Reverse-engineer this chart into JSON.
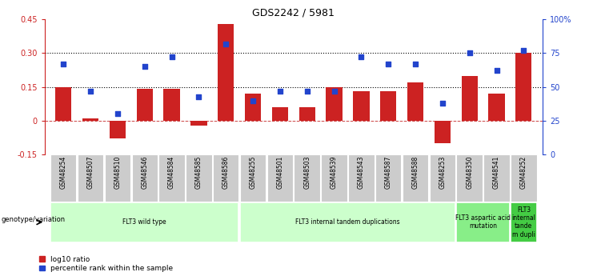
{
  "title": "GDS2242 / 5981",
  "samples": [
    "GSM48254",
    "GSM48507",
    "GSM48510",
    "GSM48546",
    "GSM48584",
    "GSM48585",
    "GSM48586",
    "GSM48255",
    "GSM48501",
    "GSM48503",
    "GSM48539",
    "GSM48543",
    "GSM48587",
    "GSM48588",
    "GSM48253",
    "GSM48350",
    "GSM48541",
    "GSM48252"
  ],
  "log10_ratio": [
    0.15,
    0.01,
    -0.08,
    0.14,
    0.14,
    -0.02,
    0.43,
    0.12,
    0.06,
    0.06,
    0.15,
    0.13,
    0.13,
    0.17,
    -0.1,
    0.2,
    0.12,
    0.3
  ],
  "percentile_rank": [
    67,
    47,
    30,
    65,
    72,
    43,
    82,
    40,
    47,
    47,
    47,
    72,
    67,
    67,
    38,
    75,
    62,
    77
  ],
  "groups": [
    {
      "label": "FLT3 wild type",
      "start": 0,
      "end": 7,
      "color": "#ccffcc"
    },
    {
      "label": "FLT3 internal tandem duplications",
      "start": 7,
      "end": 15,
      "color": "#ccffcc"
    },
    {
      "label": "FLT3 aspartic acid\nmutation",
      "start": 15,
      "end": 17,
      "color": "#88ee88"
    },
    {
      "label": "FLT3\ninternal\ntande\nm dupli",
      "start": 17,
      "end": 18,
      "color": "#44cc44"
    }
  ],
  "bar_color": "#cc2222",
  "dot_color": "#2244cc",
  "ylim_left": [
    -0.15,
    0.45
  ],
  "ylim_right": [
    0,
    100
  ],
  "yticks_left": [
    -0.15,
    0.0,
    0.15,
    0.3,
    0.45
  ],
  "yticks_right": [
    0,
    25,
    50,
    75,
    100
  ],
  "ytick_labels_left": [
    "-0.15",
    "0",
    "0.15",
    "0.30",
    "0.45"
  ],
  "ytick_labels_right": [
    "0",
    "25",
    "50",
    "75",
    "100%"
  ],
  "hlines": [
    0.15,
    0.3
  ],
  "zero_line_y": 0.0,
  "bg_color": "#ffffff",
  "tick_area_color": "#cccccc",
  "genotype_label": "genotype/variation"
}
